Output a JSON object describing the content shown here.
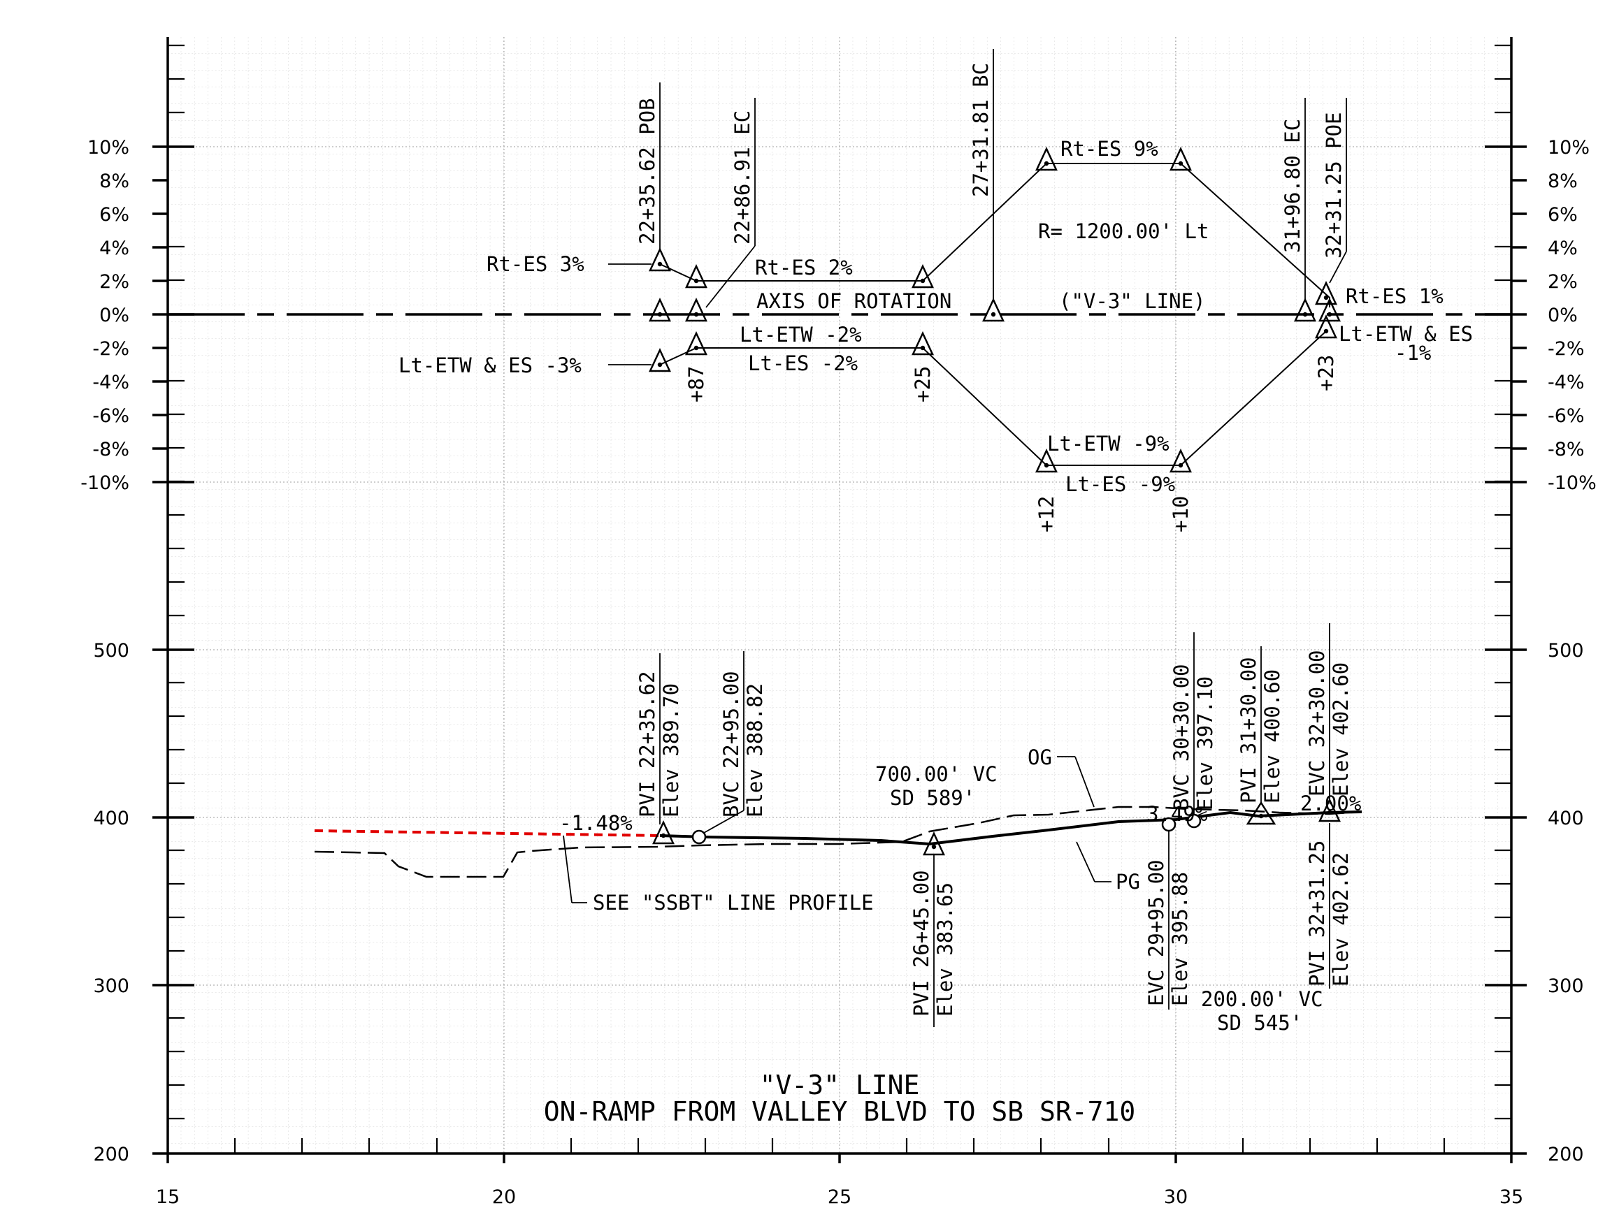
{
  "title": {
    "line1": "\"V-3\" LINE",
    "line2": "ON-RAMP FROM VALLEY BLVD TO SB SR-710"
  },
  "x_axis_ticks": [
    "15",
    "20",
    "25",
    "30",
    "35"
  ],
  "superelevation_axis_ticks": [
    "10%",
    "8%",
    "6%",
    "4%",
    "2%",
    "0%",
    "-2%",
    "-4%",
    "-6%",
    "-8%",
    "-10%"
  ],
  "elevation_axis_ticks": [
    "500",
    "400",
    "300",
    "200"
  ],
  "superelevation": {
    "labels": {
      "axis": "AXIS OF ROTATION",
      "line": "(\"V-3\" LINE)",
      "radius": "R= 1200.00' Lt",
      "rt_es_3": "Rt-ES 3%",
      "rt_es_2": "Rt-ES 2%",
      "rt_es_9": "Rt-ES 9%",
      "rt_es_1": "Rt-ES 1%",
      "lt_etw_es_3": "Lt-ETW & ES -3%",
      "lt_etw_2": "Lt-ETW -2%",
      "lt_es_2": "Lt-ES -2%",
      "lt_etw_9": "Lt-ETW -9%",
      "lt_es_9": "Lt-ES -9%",
      "lt_etw_es_1a": "Lt-ETW & ES",
      "lt_etw_es_1b": "-1%"
    },
    "stations": {
      "pob": "22+35.62 POB",
      "ec1": "22+86.91 EC",
      "bc": "27+31.81 BC",
      "ec2": "31+96.80 EC",
      "poe": "32+31.25 POE"
    },
    "offsets": [
      "+87",
      "+25",
      "+12",
      "+10",
      "+23"
    ]
  },
  "profile": {
    "pvi1": [
      "PVI 22+35.62",
      "Elev 389.70"
    ],
    "bvc1": [
      "BVC 22+95.00",
      "Elev 388.82"
    ],
    "pvi2": [
      "PVI 26+45.00",
      "Elev 383.65"
    ],
    "bvc2": [
      "BVC 30+30.00",
      "Elev 397.10"
    ],
    "evc1": [
      "EVC 29+95.00",
      "Elev 395.88"
    ],
    "pvi3": [
      "PVI 31+30.00",
      "Elev 400.60"
    ],
    "evc2": [
      "EVC 32+30.00",
      "Elev 402.60"
    ],
    "pvi4": [
      "PVI 32+31.25",
      "Elev 402.62"
    ],
    "vc1": [
      "700.00' VC",
      "SD 589'"
    ],
    "vc2": [
      "200.00' VC",
      "SD 545'"
    ],
    "grade1": "-1.48%",
    "grade2": "3.49%",
    "grade3": "2.00%",
    "og": "OG",
    "pg": "PG",
    "see_ssbt": "SEE \"SSBT\" LINE PROFILE"
  }
}
